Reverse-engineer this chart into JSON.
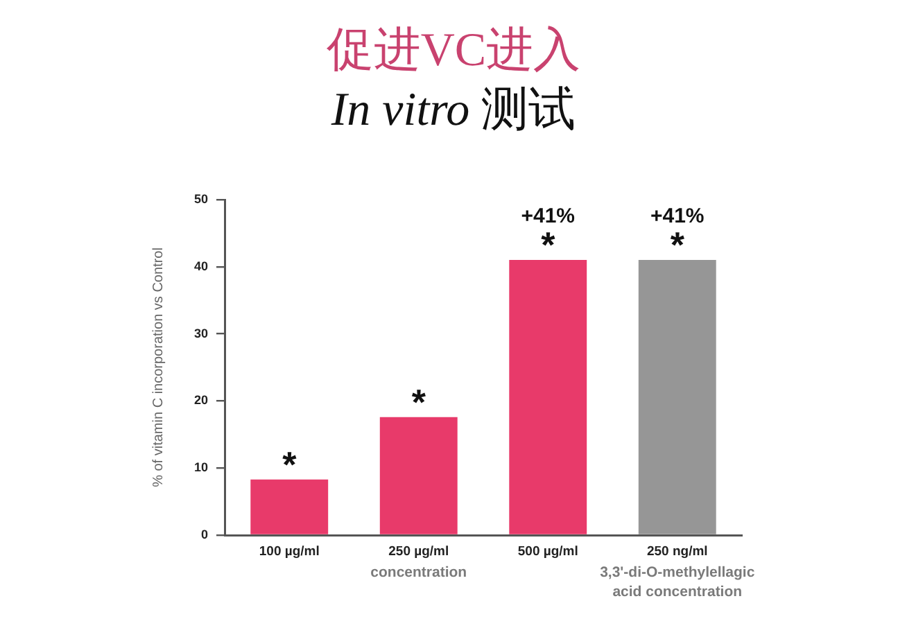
{
  "chart_data": {
    "type": "bar",
    "title": "促进VC进入",
    "subtitle": "In vitro 测试",
    "ylabel": "% of vitamin C incorporation vs Control",
    "categories": [
      "100 µg/ml",
      "250 µg/ml",
      "500 µg/ml",
      "250 ng/ml"
    ],
    "values": [
      8.3,
      17.6,
      41,
      41
    ],
    "colors": [
      "#e83a6a",
      "#e83a6a",
      "#e83a6a",
      "#969696"
    ],
    "value_labels": [
      null,
      null,
      "+41%",
      "+41%"
    ],
    "ylim": [
      0,
      50
    ],
    "yticks": [
      0,
      10,
      20,
      30,
      40,
      50
    ],
    "annotations": [
      {
        "text": "*",
        "x": "100 µg/ml",
        "y": 8.3
      },
      {
        "text": "*",
        "x": "250 µg/ml",
        "y": 17.6
      },
      {
        "text": "*",
        "x": "500 µg/ml",
        "y": 41
      },
      {
        "text": "*",
        "x": "250 ng/ml",
        "y": 41
      },
      "concentration",
      "3,3'-di-O-methylellagic acid concentration"
    ]
  }
}
